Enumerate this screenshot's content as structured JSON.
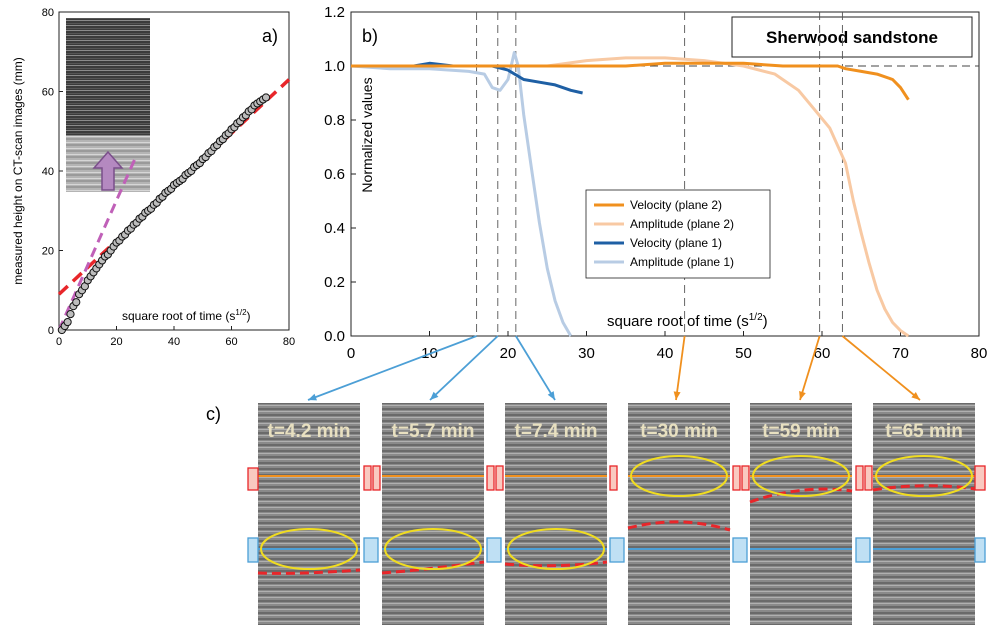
{
  "colors": {
    "vel2": "#f0901e",
    "amp2": "#f8c9a3",
    "vel1": "#1e5fa4",
    "amp1": "#b8cce4",
    "fit": "#e8262a",
    "slope": "#c060b8",
    "ellipse": "#f0dc20",
    "plane1": "#4c9fd6",
    "plane2": "#e8262a",
    "frameStroke": "#6a6a6a"
  },
  "panel_a": {
    "label": "a)",
    "xlabel": "square root of time (s",
    "xlabel_sup": "1/2",
    "xlabel_end": ")",
    "ylabel": "measured height on CT-scan images (mm)",
    "x_ticks": [
      "0",
      "20",
      "40",
      "60",
      "80"
    ],
    "y_ticks": [
      "0",
      "20",
      "40",
      "60",
      "80"
    ]
  },
  "panel_b": {
    "label": "b)",
    "title": "Sherwood sandstone",
    "xlabel": "square root of time (s",
    "xlabel_sup": "1/2",
    "xlabel_end": ")",
    "ylabel": "Normalized values",
    "x_ticks": [
      "0",
      "10",
      "20",
      "30",
      "40",
      "50",
      "60",
      "70",
      "80"
    ],
    "y_ticks": [
      "0.0",
      "0.2",
      "0.4",
      "0.6",
      "0.8",
      "1.0",
      "1.2"
    ]
  },
  "panel_c": {
    "label": "c)",
    "frames": [
      {
        "time": "t=4.2 min"
      },
      {
        "time": "t=5.7 min"
      },
      {
        "time": "t=7.4 min"
      },
      {
        "time": "t=30 min"
      },
      {
        "time": "t=59 min"
      },
      {
        "time": "t=65 min"
      }
    ]
  },
  "chart_data": [
    {
      "panel": "a",
      "type": "scatter",
      "xlim": [
        0,
        80
      ],
      "ylim": [
        0,
        80
      ],
      "xlabel": "square root of time (s1/2)",
      "ylabel": "measured height on CT-scan images (mm)",
      "series": [
        {
          "points": [
            [
              1,
              0
            ],
            [
              2,
              1
            ],
            [
              3,
              2
            ],
            [
              4,
              4
            ],
            [
              5,
              6
            ],
            [
              6,
              7
            ],
            [
              7,
              9
            ],
            [
              8,
              10
            ],
            [
              9,
              11
            ],
            [
              10,
              12.5
            ],
            [
              11,
              13.5
            ],
            [
              12,
              14.5
            ],
            [
              13,
              15.5
            ],
            [
              14,
              16.5
            ],
            [
              15,
              17.5
            ],
            [
              16,
              18.5
            ],
            [
              17,
              19
            ],
            [
              18,
              20
            ],
            [
              19,
              21
            ],
            [
              20,
              22
            ],
            [
              21,
              22.5
            ],
            [
              22,
              23.5
            ],
            [
              23,
              24
            ],
            [
              24,
              25
            ],
            [
              25,
              25.5
            ],
            [
              26,
              26.5
            ],
            [
              27,
              27
            ],
            [
              28,
              28
            ],
            [
              29,
              28.5
            ],
            [
              30,
              29.5
            ],
            [
              31,
              30
            ],
            [
              32,
              30.5
            ],
            [
              33,
              31.5
            ],
            [
              34,
              32
            ],
            [
              35,
              33
            ],
            [
              36,
              33.5
            ],
            [
              37,
              34.5
            ],
            [
              38,
              35
            ],
            [
              39,
              35.5
            ],
            [
              40,
              36.5
            ],
            [
              41,
              37
            ],
            [
              42,
              37.5
            ],
            [
              43,
              38
            ],
            [
              44,
              39
            ],
            [
              45,
              39.5
            ],
            [
              46,
              40
            ],
            [
              47,
              41
            ],
            [
              48,
              41.5
            ],
            [
              49,
              42
            ],
            [
              50,
              43
            ],
            [
              51,
              43.5
            ],
            [
              52,
              44.5
            ],
            [
              53,
              45
            ],
            [
              54,
              46
            ],
            [
              55,
              46.5
            ],
            [
              56,
              47.5
            ],
            [
              57,
              48
            ],
            [
              58,
              49
            ],
            [
              59,
              49.5
            ],
            [
              60,
              50.5
            ],
            [
              61,
              51
            ],
            [
              62,
              52
            ],
            [
              63,
              52.5
            ],
            [
              64,
              53.5
            ],
            [
              65,
              54
            ],
            [
              66,
              55
            ],
            [
              67,
              55.5
            ],
            [
              68,
              56.5
            ],
            [
              69,
              57
            ],
            [
              70,
              57.5
            ],
            [
              71,
              58
            ],
            [
              72,
              58.5
            ]
          ]
        },
        {
          "fit_line": [
            [
              0,
              9
            ],
            [
              80,
              63
            ]
          ]
        },
        {
          "early_slope_line": [
            [
              0,
              0
            ],
            [
              27,
              44
            ]
          ]
        }
      ]
    },
    {
      "panel": "b",
      "type": "line",
      "xlim": [
        0,
        80
      ],
      "ylim": [
        0,
        1.2
      ],
      "vertical_markers": [
        16,
        18.7,
        21,
        42.5,
        59.7,
        62.6
      ],
      "reference_y": 1.0,
      "series": [
        {
          "name": "Velocity (plane 2)",
          "color": "vel2",
          "points": [
            [
              0,
              1.0
            ],
            [
              5,
              1.0
            ],
            [
              10,
              1.0
            ],
            [
              15,
              1.0
            ],
            [
              20,
              1.0
            ],
            [
              25,
              1.0
            ],
            [
              30,
              1.0
            ],
            [
              35,
              1.0
            ],
            [
              40,
              1.01
            ],
            [
              45,
              1.01
            ],
            [
              50,
              1.01
            ],
            [
              55,
              1.0
            ],
            [
              60,
              1.0
            ],
            [
              62,
              1.0
            ],
            [
              63,
              0.99
            ],
            [
              65,
              0.98
            ],
            [
              67,
              0.97
            ],
            [
              69,
              0.95
            ],
            [
              70,
              0.92
            ],
            [
              71,
              0.875
            ]
          ]
        },
        {
          "name": "Amplitude (plane 2)",
          "color": "amp2",
          "points": [
            [
              0,
              1.0
            ],
            [
              10,
              1.0
            ],
            [
              20,
              1.0
            ],
            [
              25,
              1.0
            ],
            [
              30,
              1.02
            ],
            [
              35,
              1.03
            ],
            [
              40,
              1.03
            ],
            [
              45,
              1.02
            ],
            [
              50,
              1.0
            ],
            [
              54,
              0.97
            ],
            [
              57,
              0.91
            ],
            [
              59,
              0.84
            ],
            [
              61,
              0.77
            ],
            [
              63,
              0.64
            ],
            [
              64,
              0.5
            ],
            [
              65,
              0.38
            ],
            [
              66,
              0.27
            ],
            [
              67,
              0.17
            ],
            [
              68,
              0.1
            ],
            [
              69,
              0.05
            ],
            [
              70,
              0.02
            ],
            [
              71,
              0.0
            ]
          ]
        },
        {
          "name": "Velocity (plane 1)",
          "color": "vel1",
          "points": [
            [
              0,
              1.0
            ],
            [
              5,
              1.0
            ],
            [
              8,
              1.0
            ],
            [
              10,
              1.01
            ],
            [
              13,
              1.0
            ],
            [
              16,
              1.0
            ],
            [
              18,
              1.0
            ],
            [
              20,
              0.985
            ],
            [
              22,
              0.95
            ],
            [
              24,
              0.94
            ],
            [
              26,
              0.93
            ],
            [
              28,
              0.91
            ],
            [
              29.5,
              0.9
            ]
          ]
        },
        {
          "name": "Amplitude (plane 1)",
          "color": "amp1",
          "points": [
            [
              0,
              1.0
            ],
            [
              5,
              0.99
            ],
            [
              10,
              0.99
            ],
            [
              15,
              0.98
            ],
            [
              17,
              0.97
            ],
            [
              18,
              0.92
            ],
            [
              19,
              0.91
            ],
            [
              20,
              0.95
            ],
            [
              20.8,
              1.05
            ],
            [
              21.3,
              1.0
            ],
            [
              22,
              0.82
            ],
            [
              23,
              0.62
            ],
            [
              24,
              0.42
            ],
            [
              25,
              0.25
            ],
            [
              26,
              0.13
            ],
            [
              27,
              0.05
            ],
            [
              28,
              0.0
            ]
          ]
        }
      ]
    }
  ]
}
